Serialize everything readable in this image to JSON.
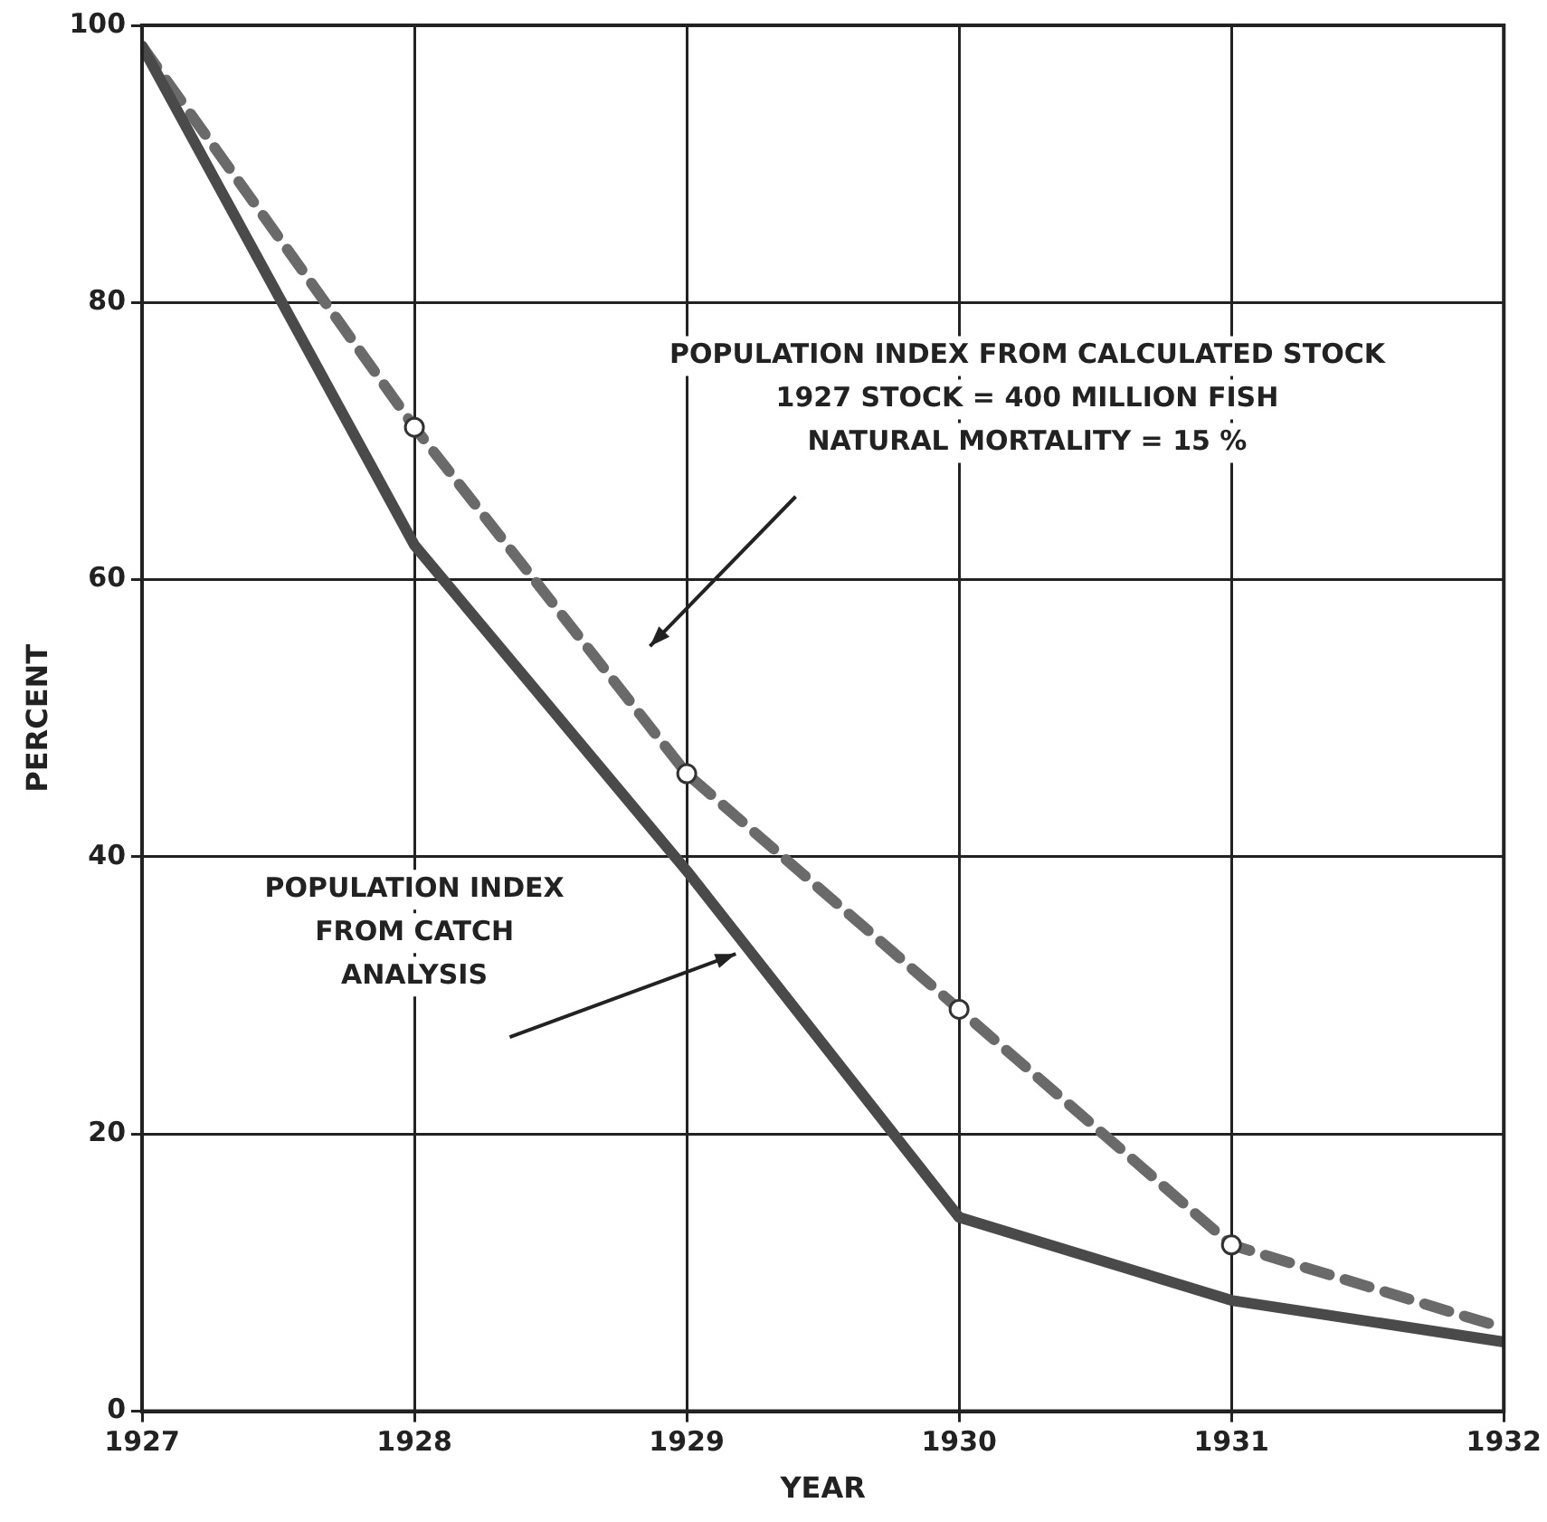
{
  "chart_data": {
    "type": "line",
    "xlabel": "YEAR",
    "ylabel": "PERCENT",
    "x": [
      1927,
      1928,
      1929,
      1930,
      1931,
      1932
    ],
    "series": [
      {
        "color": "#4a4a4a",
        "values": [
          98.5,
          62.5,
          39,
          14,
          8,
          5
        ],
        "line_style": "solid",
        "marker": "none"
      },
      {
        "color": "#6a6a6a",
        "values": [
          98.5,
          71,
          46,
          29,
          12,
          6
        ],
        "line_style": "dashed",
        "marker": "circle"
      }
    ],
    "xlim": [
      1927,
      1932
    ],
    "xticks": [
      1927,
      1928,
      1929,
      1930,
      1931,
      1932
    ],
    "ylim": [
      0,
      100
    ],
    "yticks": [
      0,
      20,
      40,
      60,
      80,
      100
    ],
    "grid": true,
    "legend": false,
    "annotations": [
      "POPULATION INDEX FROM CALCULATED STOCK\n1927 STOCK = 400 MILLION FISH\nNATURAL MORTALITY = 15 %",
      "POPULATION INDEX\nFROM CATCH\nANALYSIS"
    ]
  }
}
